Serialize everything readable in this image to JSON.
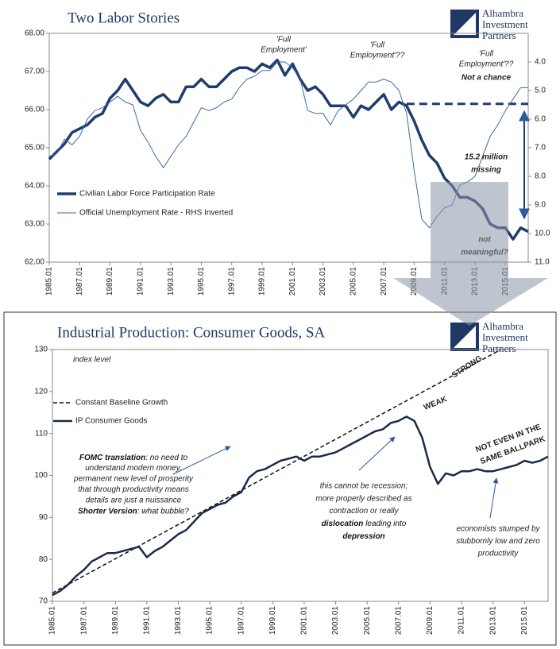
{
  "logo": [
    "Alhambra",
    "Investment",
    "Partners"
  ],
  "chart_data": [
    {
      "type": "line",
      "title": "Two Labor Stories",
      "x": [
        "1985.01",
        "1985.07",
        "1986.01",
        "1986.07",
        "1987.01",
        "1987.07",
        "1988.01",
        "1988.07",
        "1989.01",
        "1989.07",
        "1990.01",
        "1990.07",
        "1991.01",
        "1991.07",
        "1992.01",
        "1992.07",
        "1993.01",
        "1993.07",
        "1994.01",
        "1994.07",
        "1995.01",
        "1995.07",
        "1996.01",
        "1996.07",
        "1997.01",
        "1997.07",
        "1998.01",
        "1998.07",
        "1999.01",
        "1999.07",
        "2000.01",
        "2000.07",
        "2001.01",
        "2001.07",
        "2002.01",
        "2002.07",
        "2003.01",
        "2003.07",
        "2004.01",
        "2004.07",
        "2005.01",
        "2005.07",
        "2006.01",
        "2006.07",
        "2007.01",
        "2007.07",
        "2008.01",
        "2008.07",
        "2009.01",
        "2009.07",
        "2010.01",
        "2010.07",
        "2011.01",
        "2011.07",
        "2012.01",
        "2012.07",
        "2013.01",
        "2013.07",
        "2014.01",
        "2014.07",
        "2015.01",
        "2015.07",
        "2016.01",
        "2016.07"
      ],
      "series": [
        {
          "name": "Civilian Labor Force Participation Rate",
          "color": "#1f3d6e",
          "width": 3.5,
          "values": [
            64.7,
            64.9,
            65.1,
            65.4,
            65.5,
            65.6,
            65.8,
            65.9,
            66.3,
            66.5,
            66.8,
            66.5,
            66.2,
            66.1,
            66.3,
            66.4,
            66.2,
            66.2,
            66.6,
            66.6,
            66.8,
            66.6,
            66.6,
            66.8,
            67.0,
            67.1,
            67.1,
            67.0,
            67.2,
            67.1,
            67.3,
            66.9,
            67.2,
            66.8,
            66.5,
            66.6,
            66.4,
            66.1,
            66.1,
            66.1,
            65.8,
            66.1,
            66.0,
            66.2,
            66.4,
            66.0,
            66.2,
            66.1,
            65.7,
            65.2,
            64.8,
            64.6,
            64.2,
            64.0,
            63.7,
            63.7,
            63.6,
            63.4,
            63.0,
            62.9,
            62.9,
            62.6,
            62.9,
            62.8
          ]
        },
        {
          "name": "Official Unemployment Rate - RHS Inverted",
          "color": "#3a6aa8",
          "width": 1,
          "axis": "y2",
          "values": [
            7.3,
            7.2,
            6.7,
            6.9,
            6.6,
            6.0,
            5.7,
            5.6,
            5.4,
            5.2,
            5.4,
            5.5,
            6.4,
            6.8,
            7.3,
            7.7,
            7.3,
            6.9,
            6.6,
            6.1,
            5.6,
            5.7,
            5.6,
            5.4,
            5.3,
            4.9,
            4.6,
            4.5,
            4.3,
            4.3,
            4.0,
            4.0,
            4.2,
            4.6,
            5.7,
            5.8,
            5.8,
            6.2,
            5.7,
            5.5,
            5.3,
            5.0,
            4.7,
            4.7,
            4.6,
            4.7,
            5.0,
            5.8,
            7.8,
            9.5,
            9.8,
            9.4,
            9.1,
            9.0,
            8.3,
            8.2,
            8.0,
            7.3,
            6.6,
            6.2,
            5.7,
            5.3,
            4.9,
            4.9
          ]
        }
      ],
      "xlim": [
        "1985.01",
        "2016.07"
      ],
      "xticks": [
        "1985.01",
        "1987.01",
        "1989.01",
        "1991.01",
        "1993.01",
        "1995.01",
        "1997.01",
        "1999.01",
        "2001.01",
        "2003.01",
        "2005.01",
        "2007.01",
        "2009.01",
        "2011.01",
        "2013.01",
        "2015.01"
      ],
      "ylim": [
        62,
        68
      ],
      "yticks": [
        {
          "value": 62,
          "label": "62.00"
        },
        {
          "value": 63,
          "label": "63.00"
        },
        {
          "value": 64,
          "label": "64.00"
        },
        {
          "value": 65,
          "label": "65.00"
        },
        {
          "value": 66,
          "label": "66.00"
        },
        {
          "value": 67,
          "label": "67.00"
        },
        {
          "value": 68,
          "label": "68.00"
        }
      ],
      "y2lim": [
        11,
        3
      ],
      "y2ticks": [
        {
          "value": 4,
          "label": "4.0"
        },
        {
          "value": 5,
          "label": "5.0"
        },
        {
          "value": 6,
          "label": "6.0"
        },
        {
          "value": 7,
          "label": "7.0"
        },
        {
          "value": 8,
          "label": "8.0"
        },
        {
          "value": 9,
          "label": "9.0"
        },
        {
          "value": 10,
          "label": "10.0"
        },
        {
          "value": 11,
          "label": "11.0"
        }
      ],
      "reference_line": {
        "value": 66.15,
        "x": [
          "2008.07",
          "2016.07"
        ],
        "color": "#1f3d6e"
      },
      "annotations": [
        {
          "lines": [
            "'Full",
            "Employment'"
          ],
          "color": "#c00000",
          "italic": true
        },
        {
          "lines": [
            "'Full",
            "Employment'??"
          ],
          "color": "#c00000",
          "italic": true
        },
        {
          "lines": [
            "'Full",
            "Employment'??"
          ],
          "color": "#c00000",
          "italic": true
        },
        {
          "lines": [
            "Not a chance"
          ],
          "color": "#e00000",
          "italic": true,
          "bold": true
        },
        {
          "lines": [
            "15.2 million",
            "missing"
          ],
          "color": "#111111",
          "italic": true,
          "bold": true
        },
        {
          "lines": [
            "not",
            "meaningful?"
          ],
          "color": "#111111",
          "italic": true,
          "bold": true
        }
      ]
    },
    {
      "type": "line",
      "title": "Industrial Production: Consumer Goods, SA",
      "ylabel": "index level",
      "x": [
        "1985.01",
        "1985.07",
        "1986.01",
        "1986.07",
        "1987.01",
        "1987.07",
        "1988.01",
        "1988.07",
        "1989.01",
        "1989.07",
        "1990.01",
        "1990.07",
        "1991.01",
        "1991.07",
        "1992.01",
        "1992.07",
        "1993.01",
        "1993.07",
        "1994.01",
        "1994.07",
        "1995.01",
        "1995.07",
        "1996.01",
        "1996.07",
        "1997.01",
        "1997.07",
        "1998.01",
        "1998.07",
        "1999.01",
        "1999.07",
        "2000.01",
        "2000.07",
        "2001.01",
        "2001.07",
        "2002.01",
        "2002.07",
        "2003.01",
        "2003.07",
        "2004.01",
        "2004.07",
        "2005.01",
        "2005.07",
        "2006.01",
        "2006.07",
        "2007.01",
        "2007.07",
        "2008.01",
        "2008.07",
        "2009.01",
        "2009.07",
        "2010.01",
        "2010.07",
        "2011.01",
        "2011.07",
        "2012.01",
        "2012.07",
        "2013.01",
        "2013.07",
        "2014.01",
        "2014.07",
        "2015.01",
        "2015.07",
        "2016.01",
        "2016.07"
      ],
      "series": [
        {
          "name": "Constant Baseline Growth",
          "color": "#111111",
          "width": 1.5,
          "dashed": true,
          "x": [
            "1985.01",
            "2013.07"
          ],
          "values": [
            72,
            130
          ]
        },
        {
          "name": "IP Consumer Goods",
          "color": "#1a2a4a",
          "width": 2.5,
          "values": [
            71.5,
            72.5,
            74,
            76,
            77.5,
            79.5,
            80.5,
            81.5,
            81.5,
            82,
            82.5,
            83,
            80.5,
            82,
            83,
            84.5,
            86,
            87,
            89,
            91,
            92,
            93,
            93.5,
            95,
            96,
            99.5,
            101,
            101.5,
            102.5,
            103.5,
            104,
            104.5,
            103.5,
            104.5,
            104.5,
            105,
            105.5,
            106.5,
            107.5,
            108.5,
            109.5,
            110.5,
            111,
            112.5,
            113,
            114,
            113,
            109,
            102,
            98,
            100.5,
            100,
            101,
            101,
            101.5,
            101,
            101,
            101.5,
            102,
            102.5,
            103.5,
            103,
            103.5,
            104.5
          ]
        }
      ],
      "xlim": [
        "1985.01",
        "2016.07"
      ],
      "xticks": [
        "1985.01",
        "1987.01",
        "1989.01",
        "1991.01",
        "1993.01",
        "1995.01",
        "1997.01",
        "1999.01",
        "2001.01",
        "2003.01",
        "2005.01",
        "2007.01",
        "2009.01",
        "2011.01",
        "2013.01",
        "2015.01"
      ],
      "ylim": [
        70,
        130
      ],
      "yticks": [
        70,
        80,
        90,
        100,
        110,
        120,
        130
      ],
      "annotations": [
        {
          "lines": [
            "STRONG"
          ],
          "color": "#7f8f2a",
          "bold": true
        },
        {
          "lines": [
            "WEAK"
          ],
          "color": "#e00000",
          "bold": true
        },
        {
          "lines": [
            "NOT EVEN IN THE",
            "SAME BALLPARK"
          ],
          "color": "#5b8fd0",
          "bold": true
        },
        {
          "lines": [
            [
              {
                "text": "FOMC translation",
                "bold": true
              },
              ":  no need to"
            ],
            "understand modern money,",
            "permanent new level of prosperity",
            "that through productivity means",
            "details are just a nuissance",
            [
              {
                "text": "Shorter Version",
                "bold": true
              },
              ":  what bubble?"
            ]
          ],
          "color": "#111111",
          "italic": true
        },
        {
          "lines": [
            "this cannot be recession;",
            "more properly described as",
            "contraction or really",
            [
              {
                "text": "dislocation",
                "bold": true
              },
              " leading into"
            ],
            [
              {
                "text": "depression",
                "bold": true
              }
            ]
          ],
          "color": "#111111",
          "italic": true
        },
        {
          "lines": [
            "economists stumped by",
            "stubbornly low and zero",
            "productivity"
          ],
          "color": "#111111",
          "italic": true
        }
      ]
    }
  ]
}
